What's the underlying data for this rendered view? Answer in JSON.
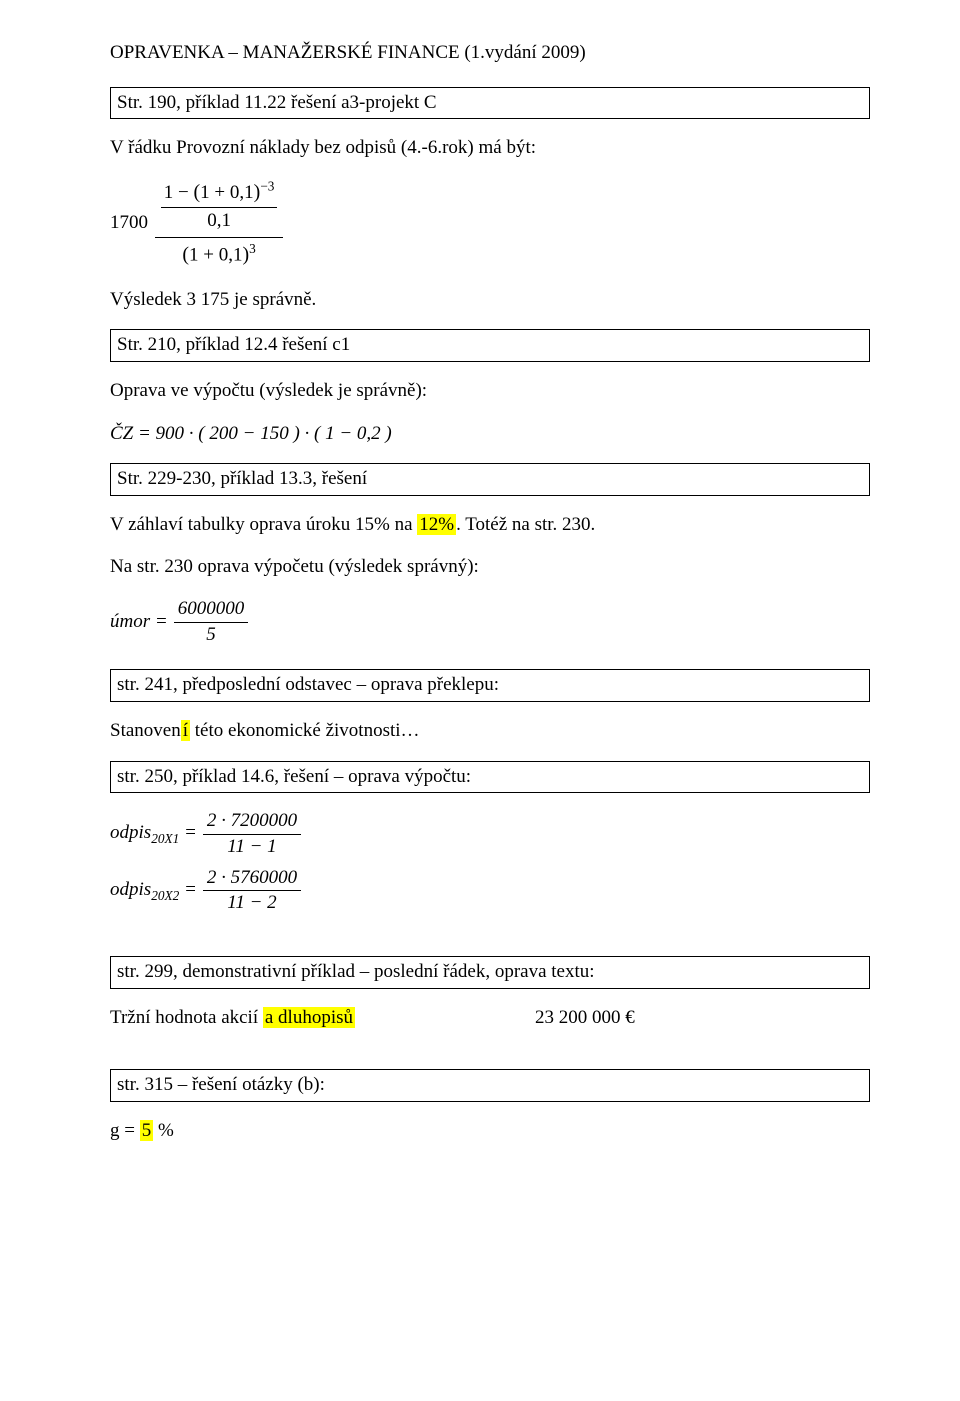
{
  "title": "OPRAVENKA – MANAŽERSKÉ FINANCE (1.vydání 2009)",
  "colors": {
    "highlight": "#ffff00",
    "text": "#000000",
    "background": "#ffffff",
    "border": "#000000"
  },
  "sections": [
    {
      "heading": "Str. 190, příklad 11.22 řešení a3-projekt C",
      "body1": "V řádku Provozní náklady bez odpisů (4.-6.rok) má být:",
      "formula1": {
        "leading": "1700",
        "inner_num": "1 − (1 + 0,1)⁻³",
        "inner_den": "0,1",
        "outer_den": "(1 + 0,1)³"
      },
      "after": "Výsledek 3 175 je správně."
    },
    {
      "heading": "Str. 210, příklad 12.4 řešení c1",
      "body1": "Oprava ve výpočtu (výsledek je správně):",
      "formula_text": "ČZ = 900 · ( 200 − 150 ) · ( 1 − 0,2 )"
    },
    {
      "heading": "Str. 229-230, příklad 13.3, řešení",
      "body_parts": {
        "pre": "V záhlaví tabulky oprava úroku 15% na ",
        "hl": "12%",
        "post": ". Totéž na str. 230."
      },
      "body2": "Na str. 230 oprava výpočetu (výsledek správný):",
      "formula": {
        "lhs": "úmor",
        "num": "6000000",
        "den": "5"
      }
    },
    {
      "heading": "str. 241, předposlední odstavec – oprava překlepu:",
      "body_parts": {
        "pre": "Stanoven",
        "hl": "í",
        "post": " této ekonomické životnosti…"
      }
    },
    {
      "heading": "str. 250, příklad 14.6, řešení – oprava výpočtu:",
      "eq1": {
        "lhs_pre": "odpis",
        "lhs_sub": "20X1",
        "num": "2 · 7200000",
        "den": "11 − 1"
      },
      "eq2": {
        "lhs_pre": "odpis",
        "lhs_sub": "20X2",
        "num": "2 · 5760000",
        "den": "11 − 2"
      }
    },
    {
      "heading": "str. 299, demonstrativní příklad – poslední řádek, oprava textu:",
      "line_parts": {
        "pre": "Tržní hodnota akcií ",
        "hl": "a dluhopisů",
        "value": "23 200 000 €"
      }
    },
    {
      "heading": "str. 315 – řešení otázky (b):",
      "g_parts": {
        "pre": "g = ",
        "hl": "5",
        "post": " %"
      }
    }
  ]
}
